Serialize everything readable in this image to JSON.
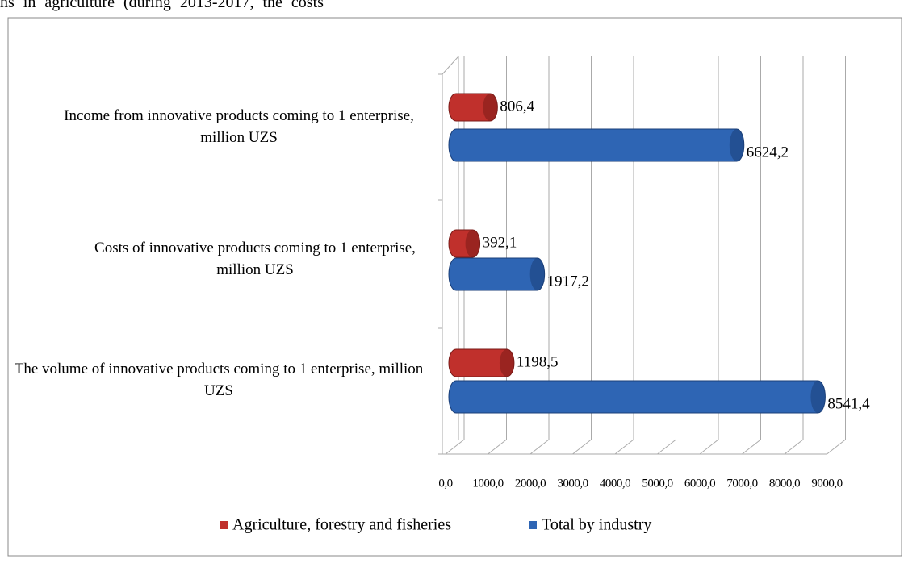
{
  "header_text": "ns in agriculture (during 2013-2017, the costs",
  "chart_data": {
    "type": "bar",
    "orientation": "horizontal",
    "style": "3d-cylinder",
    "categories": [
      "Income from innovative products coming to 1 enterprise, million UZS",
      "Costs of innovative products coming to 1 enterprise, million UZS",
      "The volume of innovative products coming to 1 enterprise, million UZS"
    ],
    "series": [
      {
        "name": "Agriculture, forestry and fisheries",
        "color": "#c0302c",
        "values": [
          806.4,
          392.1,
          1198.5
        ],
        "value_labels": [
          "806,4",
          "392,1",
          "1198,5"
        ]
      },
      {
        "name": "Total by industry",
        "color": "#2e65b4",
        "values": [
          6624.2,
          1917.2,
          8541.4
        ],
        "value_labels": [
          "6624,2",
          "1917,2",
          "8541,4"
        ]
      }
    ],
    "xlim": [
      0,
      9000
    ],
    "xticks": [
      {
        "value": 0,
        "label": "0,0"
      },
      {
        "value": 1000,
        "label": "1000,0"
      },
      {
        "value": 2000,
        "label": "2000,0"
      },
      {
        "value": 3000,
        "label": "3000,0"
      },
      {
        "value": 4000,
        "label": "4000,0"
      },
      {
        "value": 5000,
        "label": "5000,0"
      },
      {
        "value": 6000,
        "label": "6000,0"
      },
      {
        "value": 7000,
        "label": "7000,0"
      },
      {
        "value": 8000,
        "label": "8000,0"
      },
      {
        "value": 9000,
        "label": "9000,0"
      }
    ],
    "grid": true,
    "legend": "bottom"
  }
}
